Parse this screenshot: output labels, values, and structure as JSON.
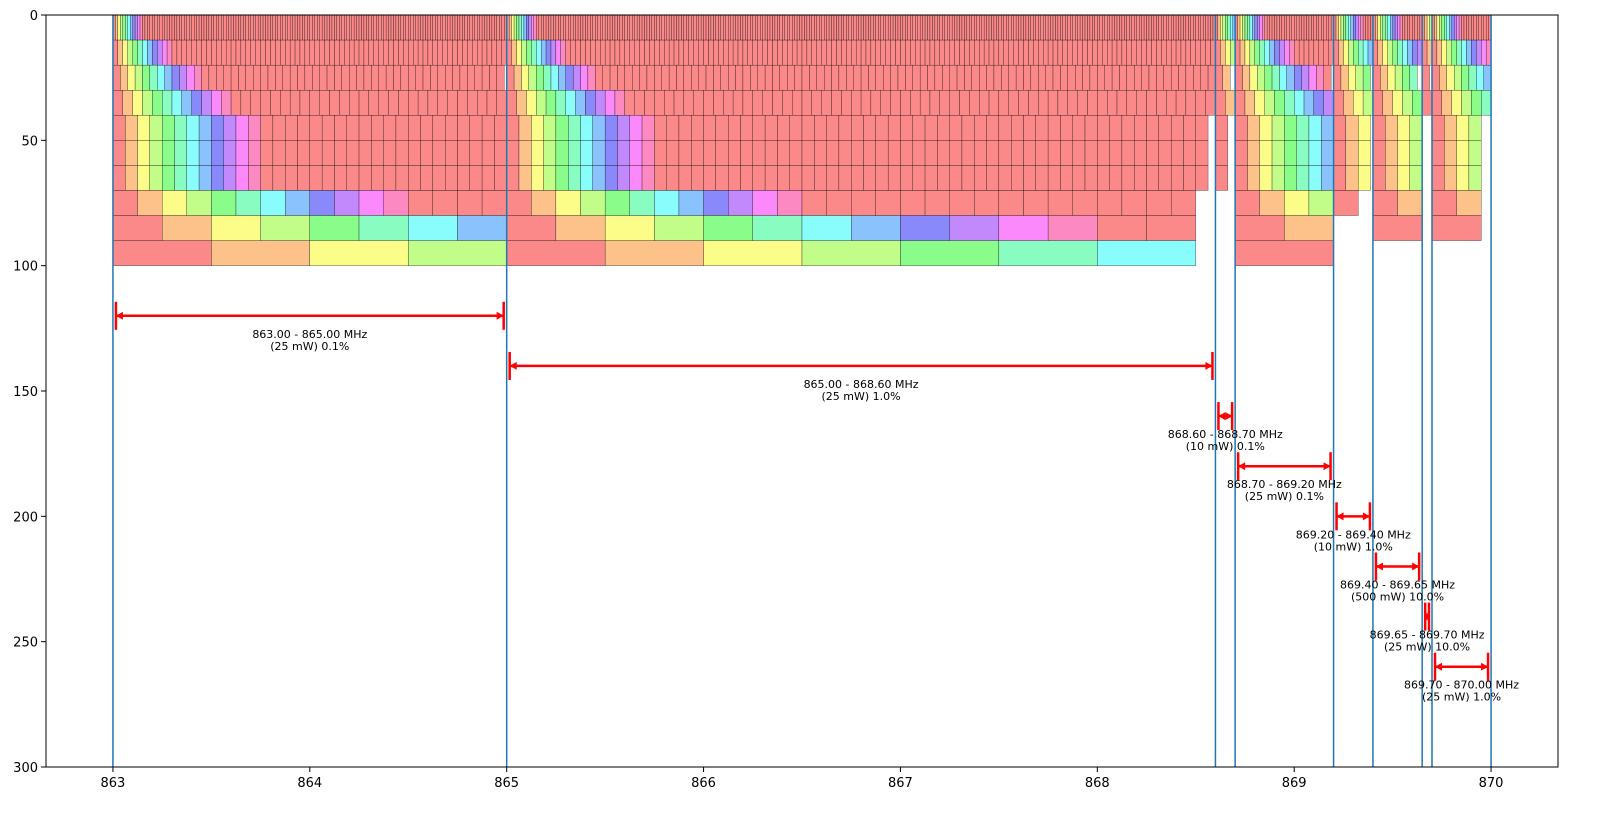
{
  "chart_data": {
    "type": "bar",
    "title": "",
    "xlabel": "",
    "ylabel": "",
    "xlim": [
      862.66,
      870.34
    ],
    "ylim": [
      300,
      0
    ],
    "y_axis_inverted": true,
    "grid": false,
    "x_ticks": [
      "863",
      "864",
      "865",
      "866",
      "867",
      "868",
      "869",
      "870"
    ],
    "y_ticks": [
      "0",
      "50",
      "100",
      "150",
      "200",
      "250",
      "300"
    ],
    "band_edges": [
      863.0,
      865.0,
      868.6,
      868.7,
      869.2,
      869.4,
      869.65,
      869.7,
      870.0
    ],
    "band_edge_color": "#1f77b4",
    "annotation_color": "#ff0000",
    "bands": [
      {
        "start": 863.0,
        "end": 865.0,
        "y": 120,
        "line1": "863.00 - 865.00 MHz",
        "line2": "(25 mW) 0.1%"
      },
      {
        "start": 865.0,
        "end": 868.6,
        "y": 140,
        "line1": "865.00 - 868.60 MHz",
        "line2": "(25 mW) 1.0%"
      },
      {
        "start": 868.6,
        "end": 868.7,
        "y": 160,
        "line1": "868.60 - 868.70 MHz",
        "line2": "(10 mW) 0.1%"
      },
      {
        "start": 868.7,
        "end": 869.2,
        "y": 180,
        "line1": "868.70 - 869.20 MHz",
        "line2": "(25 mW) 0.1%"
      },
      {
        "start": 869.2,
        "end": 869.4,
        "y": 200,
        "line1": "869.20 - 869.40 MHz",
        "line2": "(10 mW) 1.0%"
      },
      {
        "start": 869.4,
        "end": 869.65,
        "y": 220,
        "line1": "869.40 - 869.65 MHz",
        "line2": "(500 mW) 10.0%"
      },
      {
        "start": 869.65,
        "end": 869.7,
        "y": 240,
        "line1": "869.65 - 869.70 MHz",
        "line2": "(25 mW) 10.0%"
      },
      {
        "start": 869.7,
        "end": 870.0,
        "y": 260,
        "line1": "869.70 - 870.00 MHz",
        "line2": "(25 mW) 1.0%"
      }
    ],
    "channel_rows": [
      {
        "y_top": 0,
        "y_bottom": 10,
        "width_mhz": 0.0125
      },
      {
        "y_top": 10,
        "y_bottom": 20,
        "width_mhz": 0.025
      },
      {
        "y_top": 20,
        "y_bottom": 30,
        "width_mhz": 0.0375
      },
      {
        "y_top": 30,
        "y_bottom": 40,
        "width_mhz": 0.05
      },
      {
        "y_top": 40,
        "y_bottom": 50,
        "width_mhz": 0.0625
      },
      {
        "y_top": 50,
        "y_bottom": 60,
        "width_mhz": 0.0625
      },
      {
        "y_top": 60,
        "y_bottom": 70,
        "width_mhz": 0.0625
      },
      {
        "y_top": 70,
        "y_bottom": 80,
        "width_mhz": 0.125
      },
      {
        "y_top": 80,
        "y_bottom": 90,
        "width_mhz": 0.25
      },
      {
        "y_top": 90,
        "y_bottom": 100,
        "width_mhz": 0.5
      }
    ]
  }
}
